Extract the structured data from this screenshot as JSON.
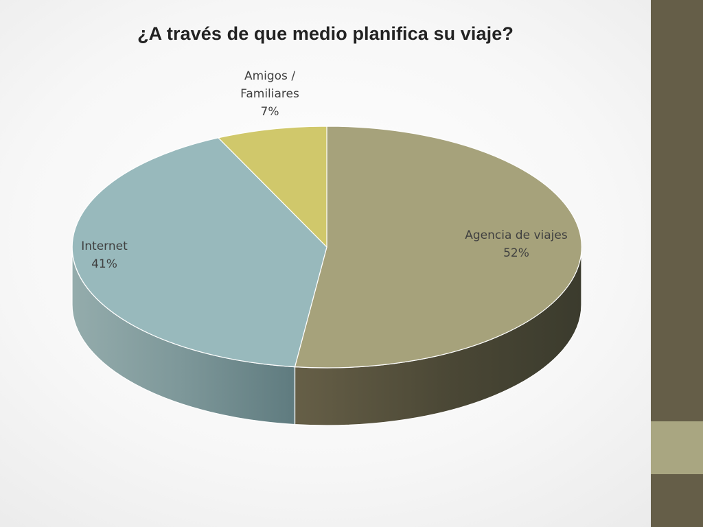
{
  "chart_data": {
    "type": "pie",
    "title": "¿A través de que medio planifica su viaje?",
    "slices": [
      {
        "name": "Agencia de viajes",
        "value": 52,
        "label": "52%",
        "color": "#a6a27b"
      },
      {
        "name": "Internet",
        "value": 41,
        "label": "41%",
        "color": "#98b9bc"
      },
      {
        "name": "Amigos / Familiares",
        "value": 7,
        "label": "7%",
        "color": "#d0c86b"
      }
    ],
    "legend": "none",
    "data_labels": "category and percent"
  },
  "slide": {
    "sidebar_color": "#655e48",
    "sidebar_accent_color": "#a9a681"
  }
}
